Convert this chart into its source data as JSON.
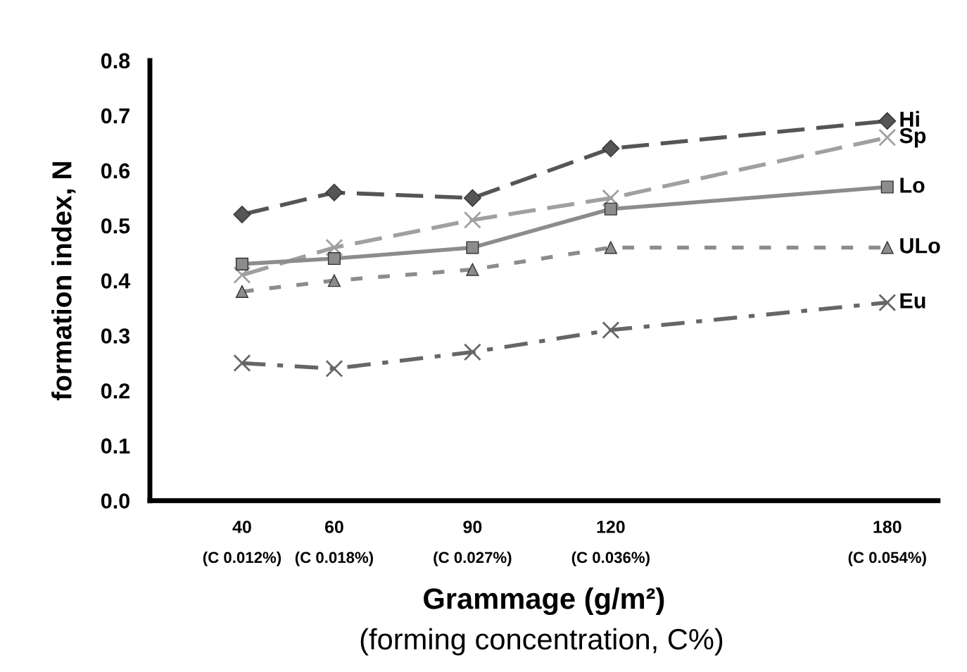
{
  "chart_data": {
    "type": "line",
    "x": [
      40,
      60,
      90,
      120,
      180
    ],
    "xlim": [
      20,
      191
    ],
    "xticks": [
      40,
      60,
      90,
      120,
      180
    ],
    "ylim": [
      0,
      0.8
    ],
    "yticks": [
      {
        "value": 0,
        "label": "0.0"
      },
      {
        "value": 0.1,
        "label": "0.1"
      },
      {
        "value": 0.2,
        "label": "0.2"
      },
      {
        "value": 0.3,
        "label": "0.3"
      },
      {
        "value": 0.4,
        "label": "0.4"
      },
      {
        "value": 0.5,
        "label": "0.5"
      },
      {
        "value": 0.6,
        "label": "0.6"
      },
      {
        "value": 0.7,
        "label": "0.7"
      },
      {
        "value": 0.8,
        "label": "0.8"
      }
    ],
    "ylabel": "formation index, N",
    "xlabel": "Grammage (g/m²)",
    "annotations": [
      "(C 0.012%)",
      "(C 0.018%)",
      "(C 0.027%)",
      "(C 0.036%)",
      "(C 0.054%)",
      "(forming concentration, C%)"
    ],
    "grid": false,
    "legend": false,
    "series": [
      {
        "name": "Hi",
        "color": "#555555",
        "marker": "diamond",
        "line_style": "dashed",
        "values": [
          0.52,
          0.56,
          0.55,
          0.64,
          0.69
        ]
      },
      {
        "name": "Sp",
        "color": "#a0a0a0",
        "marker": "cross",
        "line_style": "dashed",
        "values": [
          0.41,
          0.46,
          0.51,
          0.55,
          0.66
        ]
      },
      {
        "name": "Lo",
        "color": "#8c8c8c",
        "marker": "square",
        "line_style": "solid",
        "values": [
          0.43,
          0.44,
          0.46,
          0.53,
          0.57
        ]
      },
      {
        "name": "ULo",
        "color": "#8c8c8c",
        "marker": "triangle",
        "line_style": "dotted",
        "values": [
          0.38,
          0.4,
          0.42,
          0.46,
          0.46
        ]
      },
      {
        "name": "Eu",
        "color": "#666666",
        "marker": "cross",
        "line_style": "dashdot",
        "values": [
          0.25,
          0.24,
          0.27,
          0.31,
          0.36
        ]
      }
    ]
  }
}
